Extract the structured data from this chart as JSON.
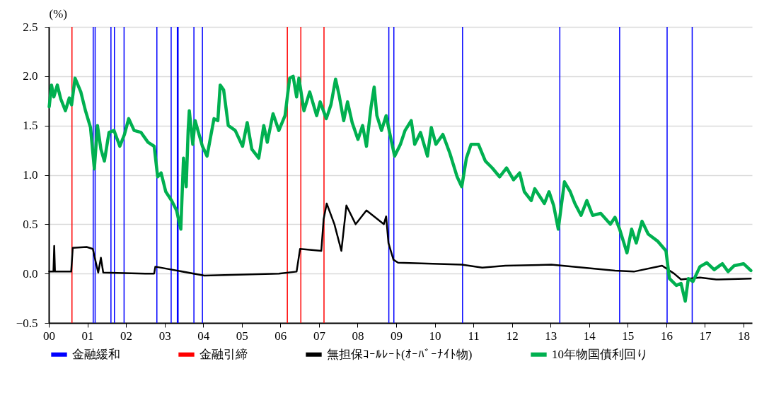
{
  "chart_data": {
    "type": "line",
    "ylabel": "(%)",
    "xlim": [
      2000,
      2018.22
    ],
    "xticks": [
      {
        "value": 2000,
        "label": "00"
      },
      {
        "value": 2001,
        "label": "01"
      },
      {
        "value": 2002,
        "label": "02"
      },
      {
        "value": 2003,
        "label": "03"
      },
      {
        "value": 2004,
        "label": "04"
      },
      {
        "value": 2005,
        "label": "05"
      },
      {
        "value": 2006,
        "label": "06"
      },
      {
        "value": 2007,
        "label": "07"
      },
      {
        "value": 2008,
        "label": "08"
      },
      {
        "value": 2009,
        "label": "09"
      },
      {
        "value": 2010,
        "label": "10"
      },
      {
        "value": 2011,
        "label": "11"
      },
      {
        "value": 2012,
        "label": "12"
      },
      {
        "value": 2013,
        "label": "13"
      },
      {
        "value": 2014,
        "label": "14"
      },
      {
        "value": 2015,
        "label": "15"
      },
      {
        "value": 2016,
        "label": "16"
      },
      {
        "value": 2017,
        "label": "17"
      },
      {
        "value": 2018,
        "label": "18"
      }
    ],
    "ylim": [
      -0.5,
      2.5
    ],
    "yticks": [
      {
        "value": 2.5,
        "label": "2.5"
      },
      {
        "value": 2,
        "label": "2.0"
      },
      {
        "value": 1.5,
        "label": "1.5"
      },
      {
        "value": 1,
        "label": "1.0"
      },
      {
        "value": 0.5,
        "label": "0.5"
      },
      {
        "value": 0,
        "label": "0.0"
      },
      {
        "value": -0.5,
        "label": "−0.5"
      }
    ],
    "grid": "y",
    "legend": "bottom",
    "line_style": "solid",
    "marker": "none",
    "series": [
      {
        "name": "無担保ｺｰﾙﾚｰﾄ(ｵｰﾊﾞｰﾅｲﾄ物)",
        "color": "#000000",
        "x": [
          2000.01,
          2000.12,
          2000.14,
          2000.16,
          2000.58,
          2000.62,
          2000.98,
          2001.14,
          2001.22,
          2001.28,
          2001.35,
          2001.41,
          2002.5,
          2002.73,
          2002.76,
          2004.03,
          2005.96,
          2006.42,
          2006.51,
          2007.06,
          2007.12,
          2007.2,
          2007.4,
          2007.58,
          2007.71,
          2007.95,
          2008.23,
          2008.68,
          2008.74,
          2008.8,
          2008.93,
          2009.05,
          2010.7,
          2011.23,
          2011.83,
          2013.02,
          2014.67,
          2015.16,
          2015.89,
          2016.2,
          2016.38,
          2016.87,
          2017.29,
          2018.19
        ],
        "values": [
          0.02,
          0.02,
          0.28,
          0.02,
          0.02,
          0.26,
          0.27,
          0.25,
          0.11,
          0.01,
          0.16,
          0.01,
          0.0,
          0.0,
          0.07,
          -0.02,
          0.0,
          0.02,
          0.25,
          0.23,
          0.55,
          0.71,
          0.5,
          0.23,
          0.69,
          0.5,
          0.64,
          0.5,
          0.58,
          0.31,
          0.14,
          0.11,
          0.09,
          0.06,
          0.08,
          0.09,
          0.03,
          0.02,
          0.08,
          0.0,
          -0.06,
          -0.04,
          -0.06,
          -0.05
        ]
      },
      {
        "name": "10年物国債利回り",
        "color": "#00b050",
        "x": [
          2000.01,
          2000.07,
          2000.13,
          2000.22,
          2000.31,
          2000.43,
          2000.53,
          2000.59,
          2000.68,
          2000.83,
          2000.95,
          2001.08,
          2001.18,
          2001.26,
          2001.35,
          2001.44,
          2001.56,
          2001.69,
          2001.84,
          2001.96,
          2002.07,
          2002.21,
          2002.39,
          2002.57,
          2002.73,
          2002.82,
          2002.91,
          2003.03,
          2003.18,
          2003.31,
          2003.42,
          2003.49,
          2003.56,
          2003.61,
          2003.64,
          2003.73,
          2003.79,
          2003.98,
          2004.1,
          2004.28,
          2004.38,
          2004.44,
          2004.53,
          2004.65,
          2004.83,
          2005.02,
          2005.14,
          2005.26,
          2005.44,
          2005.57,
          2005.66,
          2005.81,
          2005.96,
          2006.12,
          2006.24,
          2006.33,
          2006.42,
          2006.48,
          2006.61,
          2006.76,
          2006.94,
          2007.03,
          2007.19,
          2007.31,
          2007.43,
          2007.52,
          2007.64,
          2007.74,
          2007.86,
          2008.01,
          2008.13,
          2008.23,
          2008.35,
          2008.43,
          2008.5,
          2008.62,
          2008.74,
          2008.84,
          2008.96,
          2009.11,
          2009.23,
          2009.39,
          2009.48,
          2009.63,
          2009.81,
          2009.91,
          2010.03,
          2010.21,
          2010.39,
          2010.58,
          2010.7,
          2010.82,
          2010.94,
          2011.13,
          2011.31,
          2011.49,
          2011.68,
          2011.86,
          2012.04,
          2012.2,
          2012.32,
          2012.5,
          2012.59,
          2012.84,
          2012.96,
          2013.08,
          2013.2,
          2013.36,
          2013.51,
          2013.63,
          2013.79,
          2013.94,
          2014.09,
          2014.3,
          2014.55,
          2014.67,
          2014.79,
          2014.98,
          2015.1,
          2015.22,
          2015.37,
          2015.53,
          2015.77,
          2015.99,
          2016.08,
          2016.26,
          2016.38,
          2016.49,
          2016.57,
          2016.69,
          2016.87,
          2017.05,
          2017.24,
          2017.45,
          2017.6,
          2017.76,
          2018.0,
          2018.19
        ],
        "values": [
          1.69,
          1.91,
          1.79,
          1.91,
          1.77,
          1.65,
          1.78,
          1.71,
          1.98,
          1.84,
          1.65,
          1.48,
          1.06,
          1.5,
          1.26,
          1.14,
          1.43,
          1.45,
          1.29,
          1.41,
          1.57,
          1.45,
          1.43,
          1.33,
          1.29,
          0.98,
          1.02,
          0.83,
          0.74,
          0.64,
          0.45,
          1.17,
          0.88,
          1.45,
          1.65,
          1.31,
          1.55,
          1.29,
          1.19,
          1.57,
          1.55,
          1.91,
          1.86,
          1.5,
          1.45,
          1.29,
          1.53,
          1.26,
          1.17,
          1.5,
          1.33,
          1.62,
          1.45,
          1.6,
          1.98,
          2.0,
          1.79,
          1.98,
          1.65,
          1.84,
          1.6,
          1.74,
          1.57,
          1.71,
          1.97,
          1.81,
          1.55,
          1.74,
          1.53,
          1.36,
          1.5,
          1.29,
          1.69,
          1.89,
          1.6,
          1.45,
          1.6,
          1.41,
          1.19,
          1.31,
          1.45,
          1.55,
          1.31,
          1.43,
          1.19,
          1.48,
          1.31,
          1.41,
          1.22,
          0.98,
          0.88,
          1.17,
          1.31,
          1.31,
          1.14,
          1.07,
          0.98,
          1.07,
          0.95,
          1.02,
          0.83,
          0.74,
          0.86,
          0.71,
          0.83,
          0.69,
          0.45,
          0.93,
          0.83,
          0.71,
          0.59,
          0.74,
          0.59,
          0.61,
          0.5,
          0.57,
          0.45,
          0.21,
          0.45,
          0.31,
          0.53,
          0.4,
          0.33,
          0.23,
          -0.05,
          -0.12,
          -0.1,
          -0.28,
          -0.05,
          -0.08,
          0.07,
          0.11,
          0.04,
          0.1,
          0.02,
          0.08,
          0.1,
          0.03
        ]
      }
    ],
    "ref_lines": [
      {
        "axis": "x",
        "value": 2001.15,
        "label": "金融緩和",
        "color": "#0000ff"
      },
      {
        "axis": "x",
        "value": 2001.2,
        "color": "#0000ff"
      },
      {
        "axis": "x",
        "value": 2001.61,
        "color": "#0000ff"
      },
      {
        "axis": "x",
        "value": 2001.7,
        "color": "#0000ff"
      },
      {
        "axis": "x",
        "value": 2001.95,
        "color": "#0000ff"
      },
      {
        "axis": "x",
        "value": 2002.8,
        "color": "#0000ff"
      },
      {
        "axis": "x",
        "value": 2003.17,
        "color": "#0000ff"
      },
      {
        "axis": "x",
        "value": 2003.33,
        "color": "#0000ff"
      },
      {
        "axis": "x",
        "value": 2003.35,
        "color": "#0000ff"
      },
      {
        "axis": "x",
        "value": 2003.76,
        "color": "#0000ff"
      },
      {
        "axis": "x",
        "value": 2003.98,
        "color": "#0000ff"
      },
      {
        "axis": "x",
        "value": 2008.81,
        "color": "#0000ff"
      },
      {
        "axis": "x",
        "value": 2008.94,
        "color": "#0000ff"
      },
      {
        "axis": "x",
        "value": 2010.72,
        "color": "#0000ff"
      },
      {
        "axis": "x",
        "value": 2013.24,
        "color": "#0000ff"
      },
      {
        "axis": "x",
        "value": 2014.79,
        "color": "#0000ff"
      },
      {
        "axis": "x",
        "value": 2016.02,
        "color": "#0000ff"
      },
      {
        "axis": "x",
        "value": 2016.67,
        "color": "#0000ff"
      },
      {
        "axis": "x",
        "value": 2000.6,
        "label": "金融引締",
        "color": "#ff0000"
      },
      {
        "axis": "x",
        "value": 2006.18,
        "color": "#ff0000"
      },
      {
        "axis": "x",
        "value": 2006.53,
        "color": "#ff0000"
      },
      {
        "axis": "x",
        "value": 2007.13,
        "color": "#ff0000"
      }
    ]
  }
}
